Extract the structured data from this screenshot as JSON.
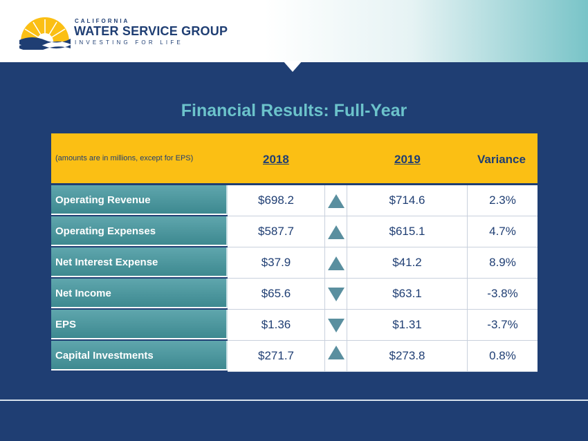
{
  "logo": {
    "line1": "CALIFORNIA",
    "line2": "WATER SERVICE GROUP",
    "line3": "INVESTING FOR LIFE"
  },
  "title": "Financial Results: Full-Year",
  "table": {
    "note": "(amounts are in millions, except for EPS)",
    "col_2018": "2018",
    "col_2019": "2019",
    "col_variance": "Variance",
    "rows": [
      {
        "label": "Operating Revenue",
        "v2018": "$698.2",
        "direction": "up",
        "v2019": "$714.6",
        "variance": "2.3%"
      },
      {
        "label": "Operating Expenses",
        "v2018": "$587.7",
        "direction": "up",
        "v2019": "$615.1",
        "variance": "4.7%"
      },
      {
        "label": "Net Interest Expense",
        "v2018": "$37.9",
        "direction": "up",
        "v2019": "$41.2",
        "variance": "8.9%"
      },
      {
        "label": "Net Income",
        "v2018": "$65.6",
        "direction": "down",
        "v2019": "$63.1",
        "variance": "-3.8%"
      },
      {
        "label": "EPS",
        "v2018": "$1.36",
        "direction": "down",
        "v2019": "$1.31",
        "variance": "-3.7%"
      },
      {
        "label": "Capital Investments",
        "v2018": "$271.7",
        "direction": "up",
        "v2019": "$273.8",
        "variance": "0.8%"
      }
    ]
  },
  "colors": {
    "navy": "#1f3e73",
    "gold": "#fbbf14",
    "teal": "#4d979e",
    "title_teal": "#6cc3cb"
  }
}
